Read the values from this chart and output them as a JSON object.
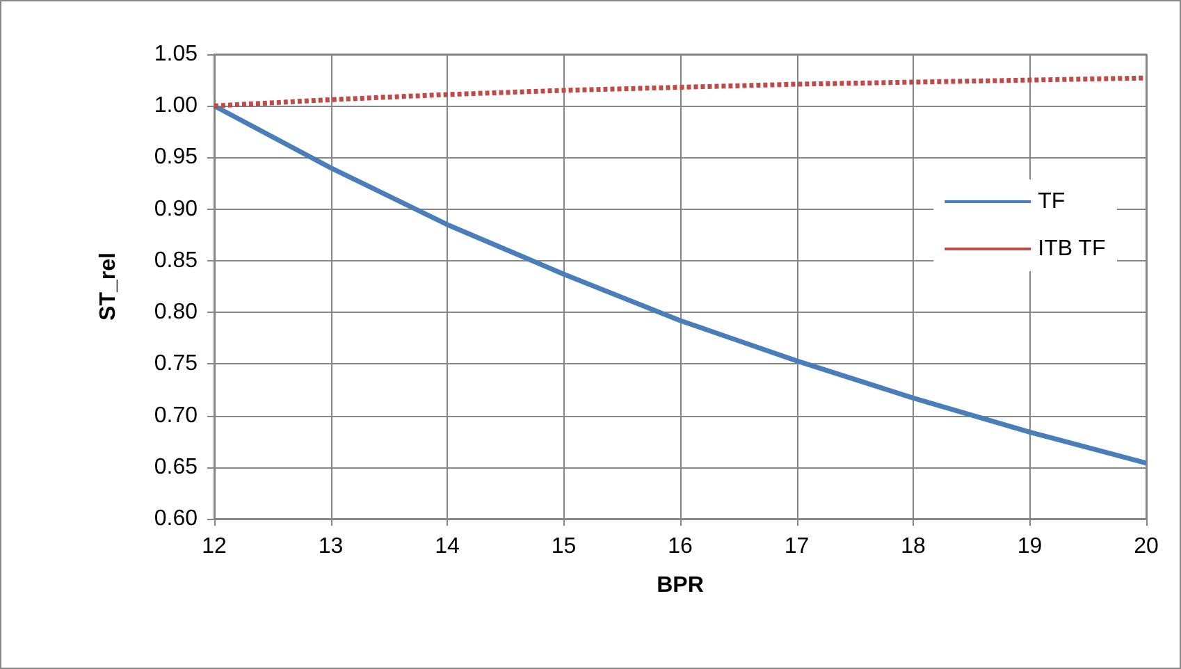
{
  "chart_data": {
    "type": "line",
    "xlabel": "BPR",
    "ylabel": "ST_rel",
    "x": [
      12,
      13,
      14,
      15,
      16,
      17,
      18,
      19,
      20
    ],
    "xlim": [
      12,
      20
    ],
    "xticks": [
      12,
      13,
      14,
      15,
      16,
      17,
      18,
      19,
      20
    ],
    "ylim": [
      0.6,
      1.05
    ],
    "yticks": [
      {
        "value": 0.6,
        "label": "0.60"
      },
      {
        "value": 0.65,
        "label": "0.65"
      },
      {
        "value": 0.7,
        "label": "0.70"
      },
      {
        "value": 0.75,
        "label": "0.75"
      },
      {
        "value": 0.8,
        "label": "0.80"
      },
      {
        "value": 0.85,
        "label": "0.85"
      },
      {
        "value": 0.9,
        "label": "0.90"
      },
      {
        "value": 0.95,
        "label": "0.95"
      },
      {
        "value": 1.0,
        "label": "1.00"
      },
      {
        "value": 1.05,
        "label": "1.05"
      }
    ],
    "grid": true,
    "legend": "right",
    "marker": "none",
    "series": [
      {
        "name": "TF",
        "color": "#4a7ebb",
        "line_style": "solid",
        "values": [
          1.0,
          0.94,
          0.885,
          0.837,
          0.792,
          0.753,
          0.717,
          0.684,
          0.654
        ]
      },
      {
        "name": "ITB TF",
        "color": "#be4b48",
        "line_style": "dashed",
        "values": [
          1.0,
          1.006,
          1.011,
          1.015,
          1.018,
          1.021,
          1.023,
          1.025,
          1.027
        ]
      }
    ]
  }
}
